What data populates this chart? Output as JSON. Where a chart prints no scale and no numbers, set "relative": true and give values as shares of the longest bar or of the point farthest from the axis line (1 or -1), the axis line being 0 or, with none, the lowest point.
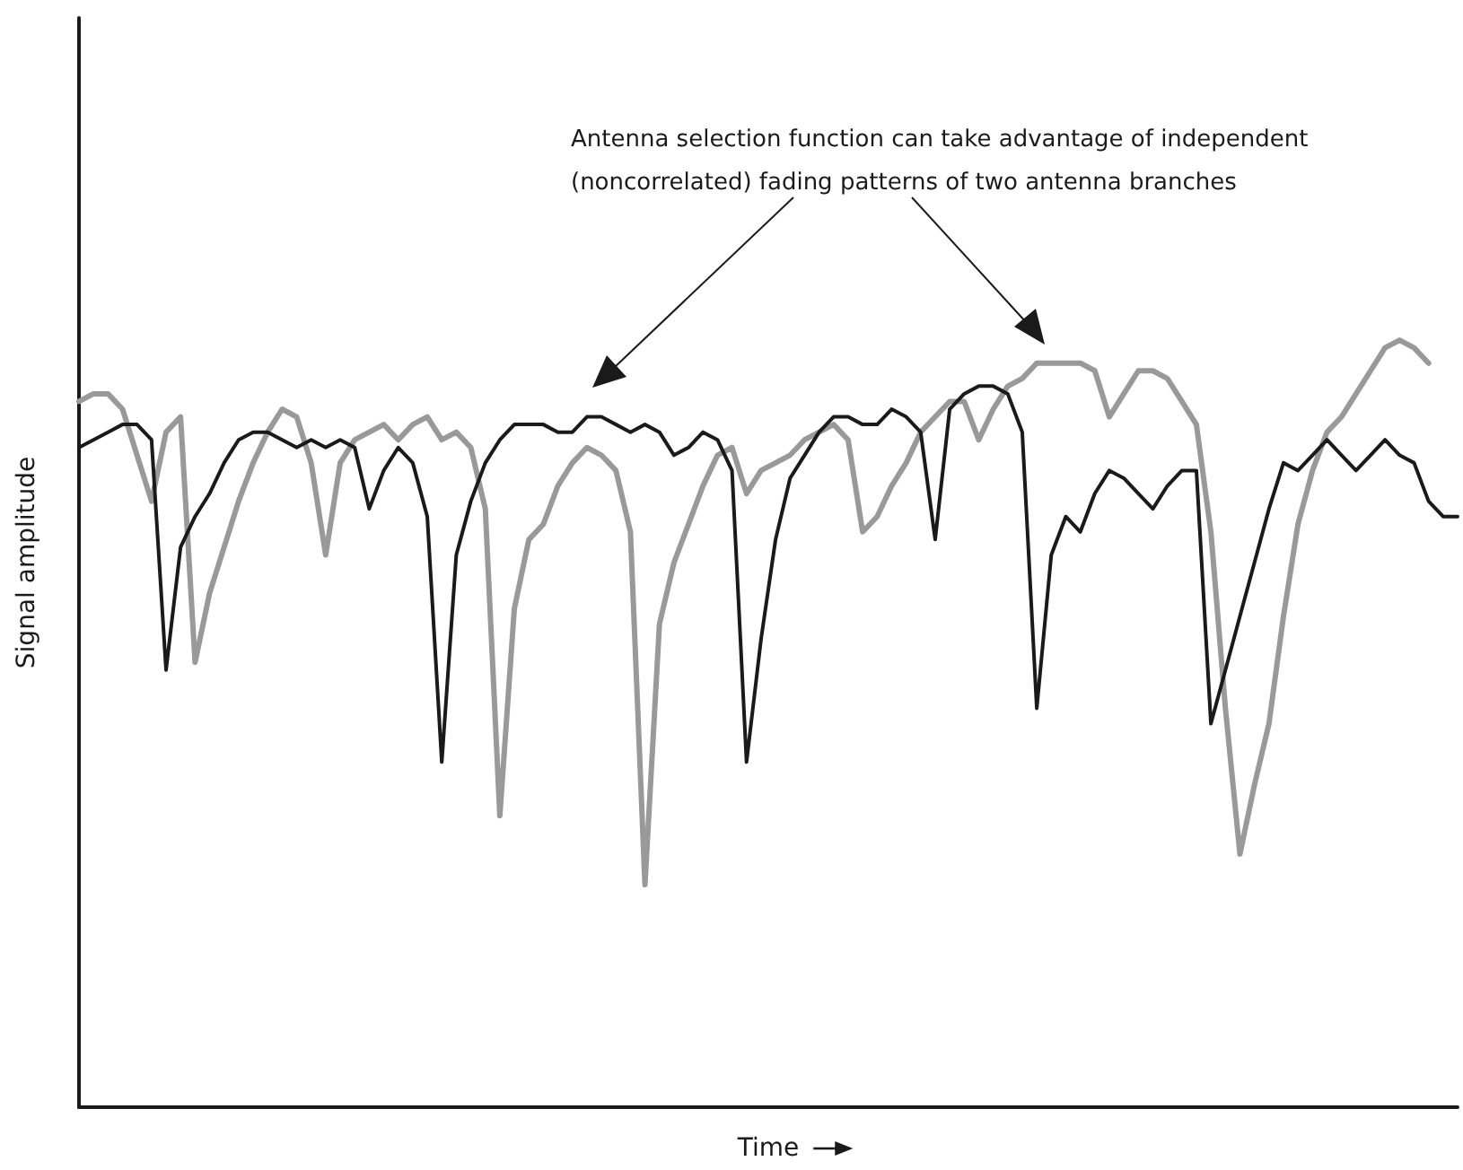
{
  "chart_data": {
    "type": "line",
    "relative": true,
    "xlabel": "Time",
    "ylabel": "Signal amplitude",
    "marker": "none",
    "annotations": [
      "Antenna selection function can take advantage of independent (noncorrelated) fading patterns of two antenna branches"
    ],
    "categories": [
      null,
      null,
      null,
      null,
      null,
      null,
      null,
      null,
      null,
      null,
      null,
      null,
      null,
      null,
      null,
      null,
      null,
      null,
      null,
      null,
      null,
      null,
      null,
      null,
      null,
      null,
      null,
      null,
      null,
      null,
      null,
      null,
      null,
      null,
      null,
      null,
      null,
      null,
      null,
      null,
      null,
      null,
      null,
      null,
      null,
      null,
      null,
      null,
      null,
      null,
      null,
      null,
      null,
      null,
      null,
      null,
      null,
      null,
      null,
      null,
      null,
      null,
      null,
      null,
      null,
      null,
      null,
      null,
      null,
      null,
      null,
      null,
      null,
      null,
      null,
      null,
      null,
      null,
      null,
      null,
      null,
      null,
      null,
      null,
      null,
      null,
      null,
      null,
      null,
      null,
      null,
      null,
      null,
      null,
      null,
      null
    ],
    "series": [
      {
        "color": "#999999",
        "values": [
          0.92,
          0.93,
          0.93,
          0.91,
          0.85,
          0.79,
          0.88,
          0.9,
          0.58,
          0.67,
          0.73,
          0.79,
          0.84,
          0.88,
          0.91,
          0.9,
          0.84,
          0.72,
          0.84,
          0.87,
          0.88,
          0.89,
          0.87,
          0.89,
          0.9,
          0.87,
          0.88,
          0.86,
          0.78,
          0.38,
          0.65,
          0.74,
          0.76,
          0.81,
          0.84,
          0.86,
          0.85,
          0.83,
          0.75,
          0.29,
          0.63,
          0.71,
          0.76,
          0.81,
          0.85,
          0.86,
          0.8,
          0.83,
          0.84,
          0.85,
          0.87,
          0.88,
          0.89,
          0.87,
          0.75,
          0.77,
          0.81,
          0.84,
          0.88,
          0.9,
          0.92,
          0.92,
          0.87,
          0.91,
          0.94,
          0.95,
          0.97,
          0.97,
          0.97,
          0.97,
          0.96,
          0.9,
          0.93,
          0.96,
          0.96,
          0.95,
          0.92,
          0.89,
          0.75,
          0.52,
          0.33,
          0.42,
          0.5,
          0.64,
          0.76,
          0.83,
          0.88,
          0.9,
          0.93,
          0.96,
          0.99,
          1.0,
          0.99,
          0.97,
          null,
          null
        ]
      },
      {
        "color": "#1a1a1a",
        "values": [
          0.86,
          0.87,
          0.88,
          0.89,
          0.89,
          0.87,
          0.57,
          0.73,
          0.77,
          0.8,
          0.84,
          0.87,
          0.88,
          0.88,
          0.87,
          0.86,
          0.87,
          0.86,
          0.87,
          0.86,
          0.78,
          0.83,
          0.86,
          0.84,
          0.77,
          0.45,
          0.72,
          0.79,
          0.84,
          0.87,
          0.89,
          0.89,
          0.89,
          0.88,
          0.88,
          0.9,
          0.9,
          0.89,
          0.88,
          0.89,
          0.88,
          0.85,
          0.86,
          0.88,
          0.87,
          0.83,
          0.45,
          0.61,
          0.74,
          0.82,
          0.85,
          0.88,
          0.9,
          0.9,
          0.89,
          0.89,
          0.91,
          0.9,
          0.88,
          0.74,
          0.91,
          0.93,
          0.94,
          0.94,
          0.93,
          0.88,
          0.52,
          0.72,
          0.77,
          0.75,
          0.8,
          0.83,
          0.82,
          0.8,
          0.78,
          0.81,
          0.83,
          0.83,
          0.5,
          0.57,
          0.64,
          0.71,
          0.78,
          0.84,
          0.83,
          0.85,
          0.87,
          0.85,
          0.83,
          0.85,
          0.87,
          0.85,
          0.84,
          0.79,
          0.77,
          0.77
        ]
      }
    ]
  }
}
